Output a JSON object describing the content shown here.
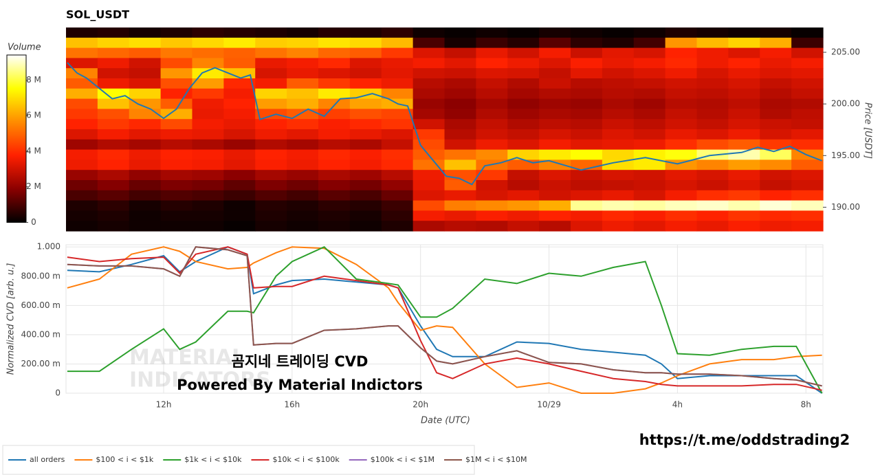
{
  "title": "SOL_USDT",
  "watermark": [
    "MATERIAL",
    "INDICATORS"
  ],
  "overlay_text": [
    "곰지네 트레이딩 CVD",
    "Powered By Material Indictors"
  ],
  "link": "https://t.me/oddstrading2",
  "chart_data": [
    {
      "type": "heatmap",
      "colorbar_title": "Volume",
      "y_label": "Price [USDT]",
      "xlim": [
        8.96,
        32.53
      ],
      "ylim": [
        187.7,
        207.4
      ],
      "yticks": [
        {
          "value": 190,
          "label": "190.00"
        },
        {
          "value": 195,
          "label": "195.00"
        },
        {
          "value": 200,
          "label": "200.00"
        },
        {
          "value": 205,
          "label": "205.00"
        }
      ],
      "zlim": [
        0,
        9.4
      ],
      "zticks": [
        0,
        {
          "value": 2,
          "label": "2 M"
        },
        {
          "value": 4,
          "label": "4 M"
        },
        {
          "value": 6,
          "label": "6 M"
        },
        {
          "value": 8,
          "label": "8 M"
        }
      ],
      "colorscale": [
        "#000000",
        "#8b0000",
        "#ff2000",
        "#ff8c00",
        "#ffff00",
        "#ffffff"
      ],
      "z": [
        [
          0.4,
          0.5,
          0.3,
          0.4,
          0.6,
          0.5,
          0.4,
          0.3,
          0.5,
          0.4,
          0.6,
          0.2,
          0.1,
          0.2,
          0.1,
          0.3,
          0.2,
          0.1,
          0.2,
          0.4,
          0.3,
          0.2,
          0.3,
          0.1
        ],
        [
          6.5,
          6.8,
          7.0,
          6.6,
          6.9,
          7.2,
          6.7,
          6.8,
          7.1,
          6.9,
          6.4,
          1.0,
          0.3,
          0.8,
          0.5,
          1.2,
          0.6,
          0.4,
          0.9,
          5.8,
          6.4,
          6.8,
          6.2,
          0.8
        ],
        [
          5.2,
          5.0,
          4.8,
          5.3,
          5.1,
          4.9,
          5.2,
          5.5,
          5.0,
          4.8,
          4.2,
          3.2,
          2.8,
          3.4,
          3.0,
          3.6,
          2.9,
          3.3,
          3.1,
          3.8,
          3.5,
          3.2,
          3.6,
          3.0
        ],
        [
          3.2,
          3.5,
          3.0,
          4.5,
          5.5,
          4.8,
          3.4,
          3.6,
          3.9,
          3.2,
          3.4,
          3.6,
          3.3,
          3.8,
          3.5,
          3.2,
          3.7,
          3.4,
          3.6,
          3.9,
          3.5,
          3.8,
          3.4,
          3.6
        ],
        [
          5.5,
          3.0,
          2.8,
          5.8,
          7.2,
          6.5,
          3.1,
          3.4,
          3.2,
          3.0,
          3.3,
          3.0,
          2.9,
          3.2,
          3.1,
          2.8,
          3.3,
          3.0,
          3.2,
          3.5,
          3.1,
          3.4,
          3.2,
          3.3
        ],
        [
          4.8,
          3.5,
          3.2,
          4.6,
          5.9,
          3.9,
          3.6,
          4.8,
          4.2,
          3.8,
          3.5,
          2.6,
          2.4,
          2.8,
          2.5,
          2.9,
          2.6,
          2.7,
          2.8,
          3.0,
          2.9,
          3.1,
          2.8,
          3.0
        ],
        [
          6.2,
          7.5,
          6.8,
          3.8,
          4.2,
          3.6,
          6.8,
          6.5,
          7.2,
          6.7,
          5.5,
          2.4,
          2.2,
          2.6,
          2.3,
          2.5,
          2.4,
          2.6,
          2.5,
          2.8,
          2.7,
          2.9,
          2.6,
          2.8
        ],
        [
          4.5,
          6.5,
          5.8,
          4.8,
          3.5,
          3.8,
          5.9,
          6.2,
          5.5,
          6.0,
          6.2,
          2.1,
          1.9,
          2.3,
          2.0,
          2.2,
          2.1,
          2.4,
          2.2,
          2.6,
          2.5,
          2.7,
          2.4,
          2.5
        ],
        [
          4.2,
          4.6,
          5.5,
          6.2,
          3.4,
          3.6,
          4.5,
          4.8,
          4.3,
          4.6,
          4.4,
          2.3,
          2.0,
          2.5,
          2.2,
          2.4,
          2.3,
          2.6,
          2.4,
          2.8,
          2.6,
          2.9,
          2.5,
          2.7
        ],
        [
          3.8,
          4.2,
          3.9,
          4.5,
          3.6,
          3.4,
          3.8,
          4.0,
          3.7,
          3.9,
          4.1,
          3.0,
          2.4,
          2.8,
          2.5,
          2.7,
          2.6,
          2.9,
          2.7,
          3.0,
          2.8,
          3.1,
          2.9,
          2.8
        ],
        [
          3.2,
          3.6,
          3.3,
          3.5,
          3.4,
          3.1,
          3.5,
          3.3,
          3.6,
          3.4,
          3.2,
          4.2,
          2.6,
          3.0,
          2.8,
          3.1,
          2.9,
          3.2,
          3.0,
          3.4,
          3.2,
          3.5,
          3.1,
          3.3
        ],
        [
          2.2,
          2.5,
          2.3,
          2.6,
          2.4,
          2.1,
          2.5,
          2.3,
          2.6,
          2.4,
          2.8,
          4.5,
          3.0,
          3.5,
          3.2,
          3.6,
          3.3,
          3.4,
          3.5,
          4.0,
          4.5,
          4.8,
          4.2,
          4.0
        ],
        [
          3.6,
          3.9,
          3.5,
          3.8,
          3.7,
          3.4,
          3.8,
          3.6,
          3.9,
          3.7,
          4.0,
          4.8,
          5.2,
          5.6,
          6.8,
          7.2,
          7.5,
          6.9,
          7.3,
          7.6,
          8.4,
          8.8,
          8.2,
          5.5
        ],
        [
          3.5,
          3.8,
          3.4,
          3.7,
          3.6,
          3.3,
          3.7,
          3.5,
          3.8,
          3.6,
          3.9,
          5.2,
          6.5,
          5.2,
          4.8,
          5.5,
          5.0,
          7.0,
          7.2,
          5.8,
          5.5,
          5.9,
          5.6,
          4.8
        ],
        [
          2.1,
          2.4,
          2.0,
          2.3,
          2.2,
          1.9,
          2.3,
          2.1,
          2.4,
          2.2,
          2.6,
          3.5,
          4.6,
          4.2,
          2.8,
          3.2,
          2.9,
          3.1,
          3.0,
          3.3,
          3.1,
          3.4,
          3.0,
          3.2
        ],
        [
          1.5,
          1.8,
          1.4,
          1.7,
          1.6,
          1.3,
          1.7,
          1.5,
          1.8,
          1.6,
          2.0,
          3.4,
          4.8,
          3.0,
          2.6,
          2.9,
          2.7,
          2.8,
          2.9,
          3.1,
          2.9,
          3.2,
          2.8,
          3.0
        ],
        [
          1.0,
          1.2,
          0.9,
          1.1,
          1.0,
          0.8,
          1.1,
          0.9,
          1.2,
          1.0,
          1.4,
          3.2,
          3.4,
          3.1,
          3.3,
          3.0,
          3.2,
          3.4,
          3.1,
          3.6,
          4.0,
          4.2,
          3.8,
          4.0
        ],
        [
          0.4,
          0.6,
          0.3,
          0.5,
          0.4,
          0.2,
          0.5,
          0.4,
          0.6,
          0.5,
          0.8,
          4.5,
          5.4,
          5.6,
          5.8,
          6.2,
          8.6,
          8.8,
          8.7,
          8.9,
          9.0,
          8.8,
          9.1,
          8.9
        ],
        [
          0.3,
          0.4,
          0.2,
          0.3,
          0.3,
          0.2,
          0.4,
          0.3,
          0.4,
          0.3,
          0.6,
          3.6,
          3.4,
          3.7,
          3.5,
          3.8,
          3.6,
          3.9,
          3.7,
          4.0,
          3.8,
          4.1,
          3.9,
          4.0
        ],
        [
          0.2,
          0.3,
          0.2,
          0.2,
          0.2,
          0.1,
          0.3,
          0.2,
          0.3,
          0.2,
          0.4,
          2.4,
          2.6,
          2.5,
          2.8,
          2.6,
          3.2,
          3.5,
          3.3,
          3.6,
          3.4,
          3.7,
          3.5,
          3.6
        ]
      ],
      "price": {
        "color": "#1f77b4",
        "x": [
          9,
          9.3,
          9.6,
          10,
          10.4,
          10.8,
          11.2,
          11.6,
          12,
          12.4,
          12.8,
          13.2,
          13.6,
          14,
          14.4,
          14.7,
          15,
          15.5,
          16,
          16.5,
          17,
          17.5,
          18,
          18.5,
          19,
          19.3,
          19.6,
          20,
          20.4,
          20.8,
          21.2,
          21.6,
          22,
          22.5,
          23,
          23.5,
          24,
          25,
          26,
          27,
          28,
          29,
          30,
          30.5,
          31,
          31.5,
          32,
          32.5
        ],
        "values": [
          204,
          203,
          202.5,
          201.5,
          200.5,
          200.8,
          200,
          199.5,
          198.6,
          199.5,
          201.5,
          203,
          203.5,
          203,
          202.5,
          202.8,
          198.5,
          199,
          198.6,
          199.5,
          198.8,
          200.5,
          200.6,
          201,
          200.5,
          200,
          199.8,
          196,
          194.5,
          193,
          192.8,
          192.2,
          194,
          194.3,
          194.8,
          194.3,
          194.5,
          193.6,
          194.3,
          194.8,
          194.2,
          195,
          195.3,
          195.8,
          195.4,
          195.9,
          195.1,
          194.5
        ]
      }
    },
    {
      "type": "line",
      "x_label": "Date (UTC)",
      "y_label": "Normalized CVD [arb. u.]",
      "xlim": [
        8.96,
        32.53
      ],
      "xticks": [
        {
          "value": 12,
          "label": "12h"
        },
        {
          "value": 16,
          "label": "16h"
        },
        {
          "value": 20,
          "label": "20h"
        },
        {
          "value": 24,
          "label": "10/29"
        },
        {
          "value": 28,
          "label": "4h"
        },
        {
          "value": 32,
          "label": "8h"
        }
      ],
      "ylim": [
        0,
        1.015
      ],
      "yticks": [
        0,
        {
          "value": 0.2,
          "label": "200.00 m"
        },
        {
          "value": 0.4,
          "label": "400.00 m"
        },
        {
          "value": 0.6,
          "label": "600.00 m"
        },
        {
          "value": 0.8,
          "label": "800.00 m"
        },
        {
          "value": 1,
          "label": "1.000"
        }
      ],
      "grid": true,
      "x": [
        9,
        10,
        11,
        12,
        12.5,
        13,
        14,
        14.6,
        14.8,
        15.5,
        16,
        17,
        18,
        19,
        19.3,
        20,
        20.5,
        21,
        22,
        23,
        24,
        25,
        26,
        27,
        27.5,
        28,
        29,
        30,
        31,
        31.7,
        32.5
      ],
      "series": [
        {
          "name": "all orders",
          "color": "#1f77b4",
          "values": [
            0.84,
            0.83,
            0.88,
            0.94,
            0.83,
            0.9,
            1.0,
            0.95,
            0.68,
            0.74,
            0.77,
            0.78,
            0.76,
            0.74,
            0.72,
            0.46,
            0.3,
            0.25,
            0.25,
            0.35,
            0.34,
            0.3,
            0.28,
            0.26,
            0.2,
            0.1,
            0.12,
            0.12,
            0.12,
            0.12,
            0.0
          ]
        },
        {
          "name": "$100 < i < $1k",
          "color": "#ff7f0e",
          "values": [
            0.72,
            0.78,
            0.95,
            1.0,
            0.97,
            0.9,
            0.85,
            0.86,
            0.89,
            0.96,
            1.0,
            0.99,
            0.88,
            0.72,
            0.62,
            0.43,
            0.46,
            0.45,
            0.2,
            0.04,
            0.07,
            0.0,
            0.0,
            0.03,
            0.07,
            0.12,
            0.2,
            0.23,
            0.23,
            0.25,
            0.26
          ]
        },
        {
          "name": "$1k < i < $10k",
          "color": "#2ca02c",
          "values": [
            0.15,
            0.15,
            0.3,
            0.44,
            0.3,
            0.35,
            0.56,
            0.56,
            0.55,
            0.8,
            0.9,
            1.0,
            0.78,
            0.75,
            0.74,
            0.52,
            0.52,
            0.58,
            0.78,
            0.75,
            0.82,
            0.8,
            0.86,
            0.9,
            0.6,
            0.27,
            0.26,
            0.3,
            0.32,
            0.32,
            0.0
          ]
        },
        {
          "name": "$10k < i < $100k",
          "color": "#d62728",
          "values": [
            0.93,
            0.9,
            0.92,
            0.93,
            0.82,
            0.95,
            1.0,
            0.95,
            0.72,
            0.73,
            0.73,
            0.8,
            0.77,
            0.74,
            0.72,
            0.36,
            0.14,
            0.1,
            0.2,
            0.24,
            0.2,
            0.15,
            0.1,
            0.08,
            0.06,
            0.05,
            0.05,
            0.05,
            0.06,
            0.06,
            0.02
          ]
        },
        {
          "name": "$100k < i < $1M",
          "color": "#9467bd",
          "values": [
            0.88,
            0.87,
            0.87,
            0.85,
            0.8,
            1.0,
            0.98,
            0.94,
            0.33,
            0.34,
            0.34,
            0.43,
            0.44,
            0.46,
            0.46,
            0.31,
            0.22,
            0.2,
            0.25,
            0.29,
            0.21,
            0.2,
            0.16,
            0.14,
            0.14,
            0.13,
            0.13,
            0.12,
            0.1,
            0.09,
            0.05
          ]
        },
        {
          "name": "$1M < i < $10M",
          "color": "#8c564b",
          "values": [
            0.88,
            0.87,
            0.87,
            0.85,
            0.8,
            1.0,
            0.98,
            0.94,
            0.33,
            0.34,
            0.34,
            0.43,
            0.44,
            0.46,
            0.46,
            0.31,
            0.22,
            0.2,
            0.25,
            0.29,
            0.21,
            0.2,
            0.16,
            0.14,
            0.14,
            0.13,
            0.13,
            0.12,
            0.1,
            0.09,
            0.05
          ]
        }
      ]
    }
  ]
}
